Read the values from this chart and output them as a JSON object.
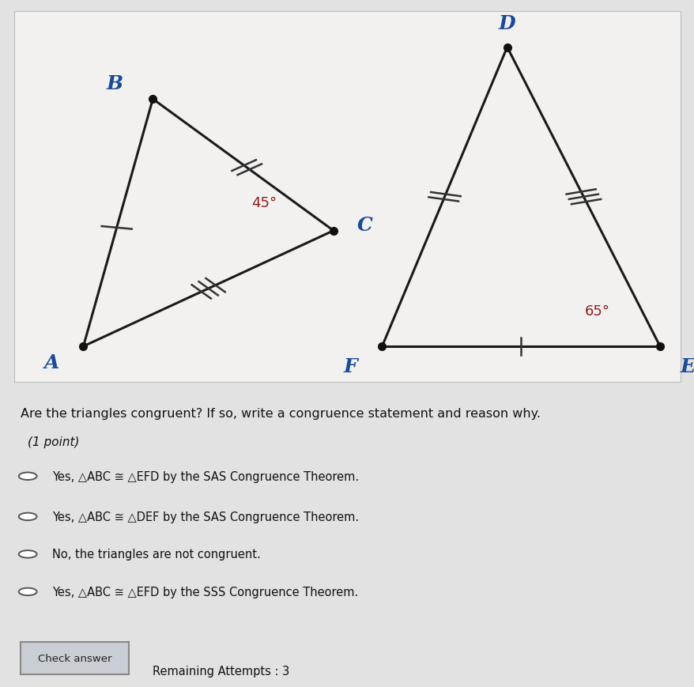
{
  "bg_color": "#e2e2e2",
  "diagram_bg": "#ebebeb",
  "box_bg": "#f2f1f0",
  "triangle1": {
    "A": [
      0.12,
      0.13
    ],
    "B": [
      0.22,
      0.75
    ],
    "C": [
      0.48,
      0.42
    ],
    "label_A": "A",
    "label_B": "B",
    "label_C": "C",
    "angle_label": "45°",
    "angle_vertex": "C",
    "ticks_AB": 1,
    "ticks_BC": 2,
    "ticks_AC": 3
  },
  "triangle2": {
    "D": [
      0.73,
      0.88
    ],
    "E": [
      0.95,
      0.13
    ],
    "F": [
      0.55,
      0.13
    ],
    "label_D": "D",
    "label_E": "E",
    "label_F": "F",
    "angle_label": "65°",
    "angle_vertex": "E",
    "ticks_FD": 2,
    "ticks_DE": 3,
    "ticks_FE": 1
  },
  "line_color": "#1a1a1a",
  "dot_color": "#111111",
  "label_color": "#1a4a9a",
  "angle_color": "#8b2020",
  "tick_color": "#333333",
  "question_text": "Are the triangles congruent? If so, write a congruence statement and reason why.",
  "point_label": "(1 point)",
  "options": [
    "Yes, △ABC ≅ △EFD by the SAS Congruence Theorem.",
    "Yes, △ABC ≅ △DEF by the SAS Congruence Theorem.",
    "No, the triangles are not congruent.",
    "Yes, △ABC ≅ △EFD by the SSS Congruence Theorem."
  ],
  "button_text": "Check answer",
  "attempts_text": "Remaining Attempts : 3"
}
